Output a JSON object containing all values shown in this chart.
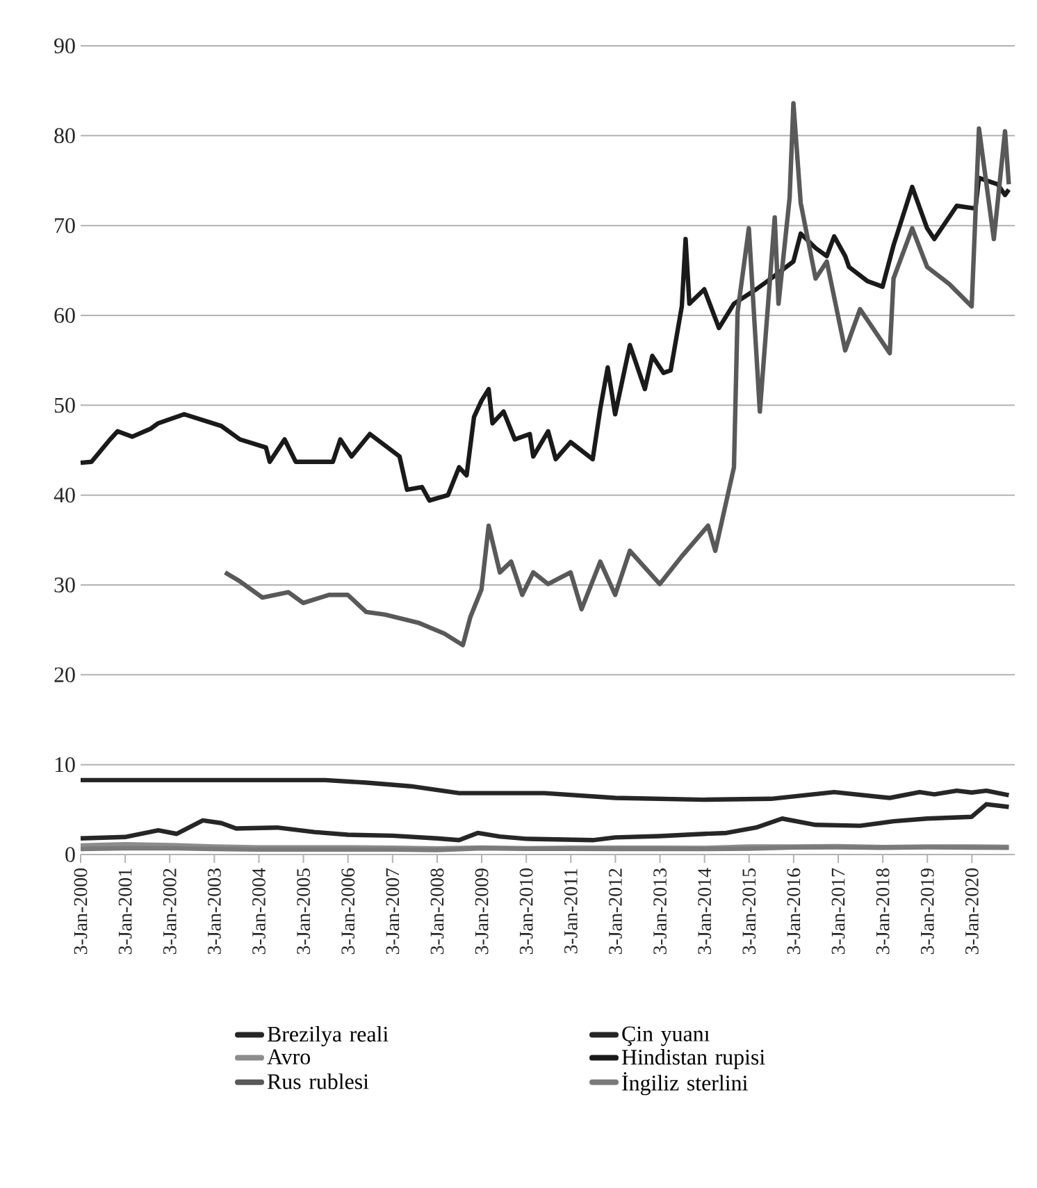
{
  "chart_data": {
    "type": "line",
    "grid": "y",
    "legend": "bottom",
    "marker": "none",
    "line_style": "solid",
    "xlim": [
      "2000-01-03",
      "2020-12-20"
    ],
    "ylim": [
      0,
      90
    ],
    "yticks": [
      0,
      10,
      20,
      30,
      40,
      50,
      60,
      70,
      80,
      90
    ],
    "xticks": [
      {
        "value": "2000-01-03",
        "label": "3-Jan-2000"
      },
      {
        "value": "2001-01-03",
        "label": "3-Jan-2001"
      },
      {
        "value": "2002-01-03",
        "label": "3-Jan-2002"
      },
      {
        "value": "2003-01-03",
        "label": "3-Jan-2003"
      },
      {
        "value": "2004-01-03",
        "label": "3-Jan-2004"
      },
      {
        "value": "2005-01-03",
        "label": "3-Jan-2005"
      },
      {
        "value": "2006-01-03",
        "label": "3-Jan-2006"
      },
      {
        "value": "2007-01-03",
        "label": "3-Jan-2007"
      },
      {
        "value": "2008-01-03",
        "label": "3-Jan-2008"
      },
      {
        "value": "2009-01-03",
        "label": "3-Jan-2009"
      },
      {
        "value": "2010-01-03",
        "label": "3-Jan-2010"
      },
      {
        "value": "2011-01-03",
        "label": "3-Jan-2011"
      },
      {
        "value": "2012-01-03",
        "label": "3-Jan-2012"
      },
      {
        "value": "2013-01-03",
        "label": "3-Jan-2013"
      },
      {
        "value": "2014-01-03",
        "label": "3-Jan-2014"
      },
      {
        "value": "2015-01-03",
        "label": "3-Jan-2015"
      },
      {
        "value": "2016-01-03",
        "label": "3-Jan-2016"
      },
      {
        "value": "2017-01-03",
        "label": "3-Jan-2017"
      },
      {
        "value": "2018-01-03",
        "label": "3-Jan-2018"
      },
      {
        "value": "2019-01-03",
        "label": "3-Jan-2019"
      },
      {
        "value": "2020-01-03",
        "label": "3-Jan-2020"
      }
    ],
    "series": [
      {
        "name": "Brezilya reali",
        "color": "#262626",
        "x": [
          "2000-01-03",
          "2001-01",
          "2001-10",
          "2002-03",
          "2002-10",
          "2003-03",
          "2003-07",
          "2004-06",
          "2005-04",
          "2006-01",
          "2007-01",
          "2008-01",
          "2008-07",
          "2008-12",
          "2009-06",
          "2010-01",
          "2011-07",
          "2012-01",
          "2013-01",
          "2014-01",
          "2014-07",
          "2015-03",
          "2015-10",
          "2016-07",
          "2017-07",
          "2018-04",
          "2019-01",
          "2020-01",
          "2020-05",
          "2020-11"
        ],
        "values": [
          1.8,
          1.95,
          2.7,
          2.3,
          3.8,
          3.5,
          2.9,
          3.0,
          2.5,
          2.2,
          2.1,
          1.8,
          1.6,
          2.4,
          2.0,
          1.75,
          1.6,
          1.9,
          2.05,
          2.3,
          2.4,
          3.0,
          4.0,
          3.3,
          3.2,
          3.7,
          4.0,
          4.2,
          5.6,
          5.3
        ]
      },
      {
        "name": "Çin yuanı",
        "color": "#262626",
        "x": [
          "2000-01-03",
          "2005-07",
          "2006-06",
          "2007-06",
          "2008-07",
          "2010-06",
          "2012-01",
          "2014-01",
          "2015-07",
          "2016-12",
          "2018-03",
          "2018-11",
          "2019-03",
          "2019-09",
          "2020-01",
          "2020-05",
          "2020-11"
        ],
        "values": [
          8.28,
          8.28,
          8.0,
          7.6,
          6.83,
          6.83,
          6.3,
          6.1,
          6.2,
          6.95,
          6.3,
          6.95,
          6.7,
          7.1,
          6.9,
          7.1,
          6.6
        ]
      },
      {
        "name": "Avro",
        "color": "#8c8c8c",
        "x": [
          "2000-01-03",
          "2001-01",
          "2002-01",
          "2003-01",
          "2004-01",
          "2005-01",
          "2006-01",
          "2007-01",
          "2008-01",
          "2009-01",
          "2010-01",
          "2011-01",
          "2012-01",
          "2013-01",
          "2014-01",
          "2015-01",
          "2016-01",
          "2017-01",
          "2018-01",
          "2019-01",
          "2020-01",
          "2020-11"
        ],
        "values": [
          1.0,
          1.15,
          1.05,
          0.9,
          0.8,
          0.8,
          0.8,
          0.75,
          0.68,
          0.77,
          0.7,
          0.75,
          0.75,
          0.75,
          0.73,
          0.9,
          0.9,
          0.93,
          0.83,
          0.89,
          0.9,
          0.85
        ]
      },
      {
        "name": "Hindistan rupisi",
        "color": "#1a1a1a",
        "x": [
          "2000-01-03",
          "2000-04",
          "2000-09",
          "2000-11",
          "2001-03",
          "2001-08",
          "2001-10",
          "2002-05",
          "2003-03",
          "2003-08",
          "2004-03",
          "2004-04",
          "2004-08",
          "2004-11",
          "2005-09",
          "2005-11",
          "2006-02",
          "2006-07",
          "2007-03",
          "2007-05",
          "2007-09",
          "2007-11",
          "2008-04",
          "2008-07",
          "2008-09",
          "2008-11",
          "2009-01",
          "2009-03",
          "2009-04",
          "2009-07",
          "2009-10",
          "2010-02",
          "2010-03",
          "2010-07",
          "2010-09",
          "2011-01",
          "2011-07",
          "2011-09",
          "2011-11",
          "2012-01",
          "2012-05",
          "2012-09",
          "2012-11",
          "2013-02",
          "2013-04",
          "2013-07",
          "2013-08",
          "2013-09",
          "2014-01",
          "2014-05",
          "2014-09",
          "2015-03",
          "2015-07",
          "2016-01",
          "2016-03",
          "2016-07",
          "2016-10",
          "2016-12",
          "2017-03",
          "2017-04",
          "2017-09",
          "2018-01",
          "2018-04",
          "2018-09",
          "2019-01",
          "2019-03",
          "2019-09",
          "2020-02",
          "2020-03",
          "2020-08",
          "2020-10",
          "2020-11"
        ],
        "values": [
          43.6,
          43.7,
          46.2,
          47.1,
          46.5,
          47.4,
          48.0,
          49.0,
          47.7,
          46.2,
          45.3,
          43.7,
          46.2,
          43.7,
          43.7,
          46.2,
          44.3,
          46.8,
          44.3,
          40.6,
          40.9,
          39.4,
          40.0,
          43.1,
          42.2,
          48.7,
          50.5,
          51.8,
          48.0,
          49.3,
          46.2,
          46.8,
          44.3,
          47.1,
          44.0,
          45.9,
          44.0,
          49.6,
          54.2,
          49.0,
          56.7,
          51.8,
          55.5,
          53.6,
          53.9,
          61.0,
          68.5,
          61.3,
          62.9,
          58.6,
          61.3,
          62.9,
          64.1,
          66.0,
          69.1,
          67.5,
          66.6,
          68.8,
          66.6,
          65.4,
          63.8,
          63.2,
          67.8,
          74.3,
          69.7,
          68.5,
          72.2,
          71.9,
          75.3,
          74.6,
          73.4,
          74.0
        ]
      },
      {
        "name": "Rus rublesi",
        "color": "#595959",
        "x": [
          "2003-04",
          "2003-08",
          "2004-02",
          "2004-09",
          "2005-01",
          "2005-08",
          "2006-01",
          "2006-06",
          "2006-11",
          "2007-08",
          "2008-03",
          "2008-08",
          "2008-10",
          "2009-01",
          "2009-03",
          "2009-06",
          "2009-09",
          "2009-12",
          "2010-03",
          "2010-07",
          "2011-01",
          "2011-04",
          "2011-09",
          "2012-01",
          "2012-05",
          "2013-01",
          "2013-07",
          "2014-02",
          "2014-04",
          "2014-09",
          "2014-10",
          "2015-01",
          "2015-04",
          "2015-08",
          "2015-09",
          "2015-12",
          "2016-01",
          "2016-03",
          "2016-07",
          "2016-10",
          "2017-03",
          "2017-07",
          "2018-03",
          "2018-04",
          "2018-09",
          "2019-01",
          "2019-07",
          "2020-01",
          "2020-03",
          "2020-07",
          "2020-10",
          "2020-11"
        ],
        "values": [
          31.4,
          30.4,
          28.6,
          29.2,
          28.0,
          28.9,
          28.9,
          27.0,
          26.7,
          25.8,
          24.6,
          23.3,
          26.4,
          29.5,
          36.6,
          31.4,
          32.6,
          28.9,
          31.4,
          30.1,
          31.4,
          27.3,
          32.6,
          28.9,
          33.8,
          30.1,
          33.2,
          36.6,
          33.8,
          43.1,
          60.4,
          69.7,
          49.3,
          70.9,
          61.3,
          73.1,
          83.6,
          72.5,
          64.1,
          66.0,
          56.1,
          60.7,
          55.8,
          64.1,
          69.7,
          65.4,
          63.5,
          61.0,
          80.8,
          68.5,
          80.5,
          74.6
        ]
      },
      {
        "name": "İngiliz sterlini",
        "color": "#7a7a7a",
        "x": [
          "2000-01-03",
          "2001-01",
          "2002-01",
          "2003-01",
          "2004-01",
          "2005-01",
          "2006-01",
          "2007-01",
          "2008-01",
          "2009-01",
          "2010-01",
          "2011-01",
          "2012-01",
          "2013-01",
          "2014-01",
          "2015-01",
          "2016-01",
          "2017-01",
          "2018-01",
          "2019-01",
          "2020-01",
          "2020-11"
        ],
        "values": [
          0.62,
          0.69,
          0.7,
          0.62,
          0.55,
          0.55,
          0.55,
          0.55,
          0.5,
          0.7,
          0.64,
          0.63,
          0.62,
          0.61,
          0.61,
          0.66,
          0.78,
          0.8,
          0.75,
          0.8,
          0.77,
          0.75
        ]
      }
    ]
  }
}
